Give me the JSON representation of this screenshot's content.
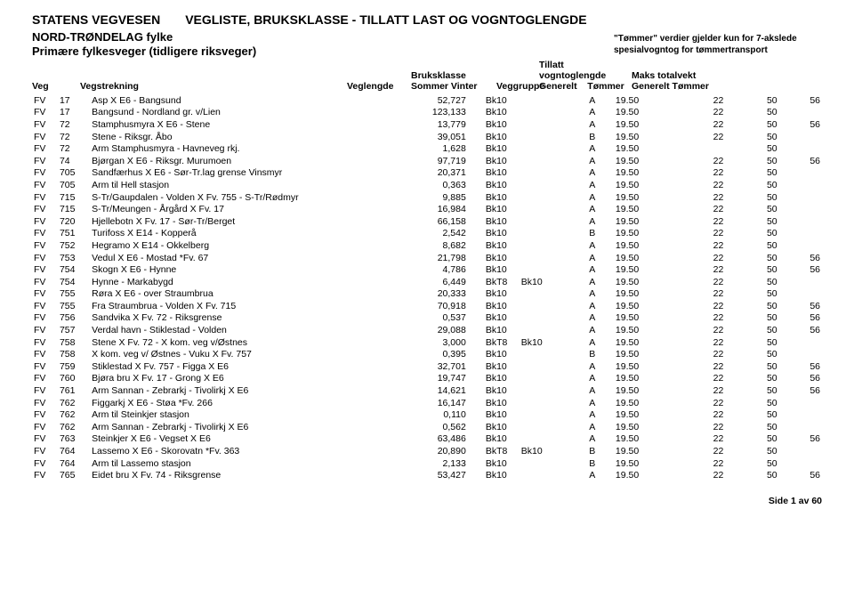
{
  "header": {
    "org": "STATENS VEGVESEN",
    "title": "VEGLISTE, BRUKSKLASSE - TILLATT LAST OG VOGNTOGLENGDE",
    "region": "NORD-TRØNDELAG fylke",
    "category": "Primære fylkesveger (tidligere riksveger)",
    "note1": "\"Tømmer\" verdier gjelder kun for 7-akslede",
    "note2": "spesialvogntog for tømmertransport"
  },
  "columns": {
    "veg": "Veg",
    "vegstrekning": "Vegstrekning",
    "veglengde": "Veglengde",
    "bruksklasse": "Bruksklasse",
    "bruksklasse_sub": "Sommer   Vinter",
    "veggruppe": "Veggruppe",
    "tillatt": "Tillatt vogntoglengde",
    "tillatt_sub1": "Generelt",
    "tillatt_sub2": "Tømmer",
    "maks": "Maks totalvekt",
    "maks_sub1": "Generelt",
    "maks_sub2": "Tømmer"
  },
  "rows": [
    {
      "veg": "FV",
      "num": "17",
      "str": "Asp X E6 - Bangsund",
      "len": "52,727",
      "bk1": "Bk10",
      "bk2": "",
      "grp": "A",
      "gen": "19.50",
      "tom": "22",
      "mg": "50",
      "mt": "56"
    },
    {
      "veg": "FV",
      "num": "17",
      "str": "Bangsund - Nordland gr. v/Lien",
      "len": "123,133",
      "bk1": "Bk10",
      "bk2": "",
      "grp": "A",
      "gen": "19.50",
      "tom": "22",
      "mg": "50",
      "mt": ""
    },
    {
      "veg": "FV",
      "num": "72",
      "str": "Stamphusmyra X E6 - Stene",
      "len": "13,779",
      "bk1": "Bk10",
      "bk2": "",
      "grp": "A",
      "gen": "19.50",
      "tom": "22",
      "mg": "50",
      "mt": "56"
    },
    {
      "veg": "FV",
      "num": "72",
      "str": "Stene - Riksgr. Åbo",
      "len": "39,051",
      "bk1": "Bk10",
      "bk2": "",
      "grp": "B",
      "gen": "19.50",
      "tom": "22",
      "mg": "50",
      "mt": ""
    },
    {
      "veg": "FV",
      "num": "72",
      "str": "Arm Stamphusmyra - Havneveg rkj.",
      "len": "1,628",
      "bk1": "Bk10",
      "bk2": "",
      "grp": "A",
      "gen": "19.50",
      "tom": "",
      "mg": "50",
      "mt": ""
    },
    {
      "veg": "FV",
      "num": "74",
      "str": "Bjørgan X E6 - Riksgr. Murumoen",
      "len": "97,719",
      "bk1": "Bk10",
      "bk2": "",
      "grp": "A",
      "gen": "19.50",
      "tom": "22",
      "mg": "50",
      "mt": "56"
    },
    {
      "veg": "FV",
      "num": "705",
      "str": "Sandfærhus X E6 - Sør-Tr.lag grense Vinsmyr",
      "len": "20,371",
      "bk1": "Bk10",
      "bk2": "",
      "grp": "A",
      "gen": "19.50",
      "tom": "22",
      "mg": "50",
      "mt": ""
    },
    {
      "veg": "FV",
      "num": "705",
      "str": "Arm til Hell stasjon",
      "len": "0,363",
      "bk1": "Bk10",
      "bk2": "",
      "grp": "A",
      "gen": "19.50",
      "tom": "22",
      "mg": "50",
      "mt": ""
    },
    {
      "veg": "FV",
      "num": "715",
      "str": "S-Tr/Gaupdalen - Volden X Fv. 755 - S-Tr/Rødmyr",
      "len": "9,885",
      "bk1": "Bk10",
      "bk2": "",
      "grp": "A",
      "gen": "19.50",
      "tom": "22",
      "mg": "50",
      "mt": ""
    },
    {
      "veg": "FV",
      "num": "715",
      "str": "S-Tr/Meungen - Årgård X Fv. 17",
      "len": "16,984",
      "bk1": "Bk10",
      "bk2": "",
      "grp": "A",
      "gen": "19.50",
      "tom": "22",
      "mg": "50",
      "mt": ""
    },
    {
      "veg": "FV",
      "num": "720",
      "str": "Hjellebotn X Fv. 17 - Sør-Tr/Berget",
      "len": "66,158",
      "bk1": "Bk10",
      "bk2": "",
      "grp": "A",
      "gen": "19.50",
      "tom": "22",
      "mg": "50",
      "mt": ""
    },
    {
      "veg": "FV",
      "num": "751",
      "str": "Turifoss X E14 - Kopperå",
      "len": "2,542",
      "bk1": "Bk10",
      "bk2": "",
      "grp": "B",
      "gen": "19.50",
      "tom": "22",
      "mg": "50",
      "mt": ""
    },
    {
      "veg": "FV",
      "num": "752",
      "str": "Hegramo X E14 - Okkelberg",
      "len": "8,682",
      "bk1": "Bk10",
      "bk2": "",
      "grp": "A",
      "gen": "19.50",
      "tom": "22",
      "mg": "50",
      "mt": ""
    },
    {
      "veg": "FV",
      "num": "753",
      "str": "Vedul X E6 - Mostad *Fv. 67",
      "len": "21,798",
      "bk1": "Bk10",
      "bk2": "",
      "grp": "A",
      "gen": "19.50",
      "tom": "22",
      "mg": "50",
      "mt": "56"
    },
    {
      "veg": "FV",
      "num": "754",
      "str": "Skogn X E6 - Hynne",
      "len": "4,786",
      "bk1": "Bk10",
      "bk2": "",
      "grp": "A",
      "gen": "19.50",
      "tom": "22",
      "mg": "50",
      "mt": "56"
    },
    {
      "veg": "FV",
      "num": "754",
      "str": "Hynne - Markabygd",
      "len": "6,449",
      "bk1": "BkT8",
      "bk2": "Bk10",
      "grp": "A",
      "gen": "19.50",
      "tom": "22",
      "mg": "50",
      "mt": ""
    },
    {
      "veg": "FV",
      "num": "755",
      "str": "Røra X E6 - over Straumbrua",
      "len": "20,333",
      "bk1": "Bk10",
      "bk2": "",
      "grp": "A",
      "gen": "19.50",
      "tom": "22",
      "mg": "50",
      "mt": ""
    },
    {
      "veg": "FV",
      "num": "755",
      "str": "Fra Straumbrua - Volden X Fv. 715",
      "len": "70,918",
      "bk1": "Bk10",
      "bk2": "",
      "grp": "A",
      "gen": "19.50",
      "tom": "22",
      "mg": "50",
      "mt": "56"
    },
    {
      "veg": "FV",
      "num": "756",
      "str": "Sandvika X Fv. 72 - Riksgrense",
      "len": "0,537",
      "bk1": "Bk10",
      "bk2": "",
      "grp": "A",
      "gen": "19.50",
      "tom": "22",
      "mg": "50",
      "mt": "56"
    },
    {
      "veg": "FV",
      "num": "757",
      "str": "Verdal havn - Stiklestad - Volden",
      "len": "29,088",
      "bk1": "Bk10",
      "bk2": "",
      "grp": "A",
      "gen": "19.50",
      "tom": "22",
      "mg": "50",
      "mt": "56"
    },
    {
      "veg": "FV",
      "num": "758",
      "str": "Stene X Fv. 72 - X kom. veg v/Østnes",
      "len": "3,000",
      "bk1": "BkT8",
      "bk2": "Bk10",
      "grp": "A",
      "gen": "19.50",
      "tom": "22",
      "mg": "50",
      "mt": ""
    },
    {
      "veg": "FV",
      "num": "758",
      "str": "X kom. veg v/ Østnes - Vuku X Fv. 757",
      "len": "0,395",
      "bk1": "Bk10",
      "bk2": "",
      "grp": "B",
      "gen": "19.50",
      "tom": "22",
      "mg": "50",
      "mt": ""
    },
    {
      "veg": "FV",
      "num": "759",
      "str": "Stiklestad X Fv. 757 - Figga X E6",
      "len": "32,701",
      "bk1": "Bk10",
      "bk2": "",
      "grp": "A",
      "gen": "19.50",
      "tom": "22",
      "mg": "50",
      "mt": "56"
    },
    {
      "veg": "FV",
      "num": "760",
      "str": "Bjøra bru X Fv. 17 - Grong X E6",
      "len": "19,747",
      "bk1": "Bk10",
      "bk2": "",
      "grp": "A",
      "gen": "19.50",
      "tom": "22",
      "mg": "50",
      "mt": "56"
    },
    {
      "veg": "FV",
      "num": "761",
      "str": "Arm Sannan - Zebrarkj - Tivolirkj X E6",
      "len": "14,621",
      "bk1": "Bk10",
      "bk2": "",
      "grp": "A",
      "gen": "19.50",
      "tom": "22",
      "mg": "50",
      "mt": "56"
    },
    {
      "veg": "FV",
      "num": "762",
      "str": "Figgarkj X E6 - Støa *Fv. 266",
      "len": "16,147",
      "bk1": "Bk10",
      "bk2": "",
      "grp": "A",
      "gen": "19.50",
      "tom": "22",
      "mg": "50",
      "mt": ""
    },
    {
      "veg": "FV",
      "num": "762",
      "str": "Arm til Steinkjer stasjon",
      "len": "0,110",
      "bk1": "Bk10",
      "bk2": "",
      "grp": "A",
      "gen": "19.50",
      "tom": "22",
      "mg": "50",
      "mt": ""
    },
    {
      "veg": "FV",
      "num": "762",
      "str": "Arm Sannan - Zebrarkj - Tivolirkj X E6",
      "len": "0,562",
      "bk1": "Bk10",
      "bk2": "",
      "grp": "A",
      "gen": "19.50",
      "tom": "22",
      "mg": "50",
      "mt": ""
    },
    {
      "veg": "FV",
      "num": "763",
      "str": "Steinkjer X E6 - Vegset X E6",
      "len": "63,486",
      "bk1": "Bk10",
      "bk2": "",
      "grp": "A",
      "gen": "19.50",
      "tom": "22",
      "mg": "50",
      "mt": "56"
    },
    {
      "veg": "FV",
      "num": "764",
      "str": "Lassemo X E6 - Skorovatn *Fv. 363",
      "len": "20,890",
      "bk1": "BkT8",
      "bk2": "Bk10",
      "grp": "B",
      "gen": "19.50",
      "tom": "22",
      "mg": "50",
      "mt": ""
    },
    {
      "veg": "FV",
      "num": "764",
      "str": "Arm til Lassemo stasjon",
      "len": "2,133",
      "bk1": "Bk10",
      "bk2": "",
      "grp": "B",
      "gen": "19.50",
      "tom": "22",
      "mg": "50",
      "mt": ""
    },
    {
      "veg": "FV",
      "num": "765",
      "str": "Eidet bru X Fv. 74 - Riksgrense",
      "len": "53,427",
      "bk1": "Bk10",
      "bk2": "",
      "grp": "A",
      "gen": "19.50",
      "tom": "22",
      "mg": "50",
      "mt": "56"
    }
  ],
  "footer": "Side 1 av 60"
}
